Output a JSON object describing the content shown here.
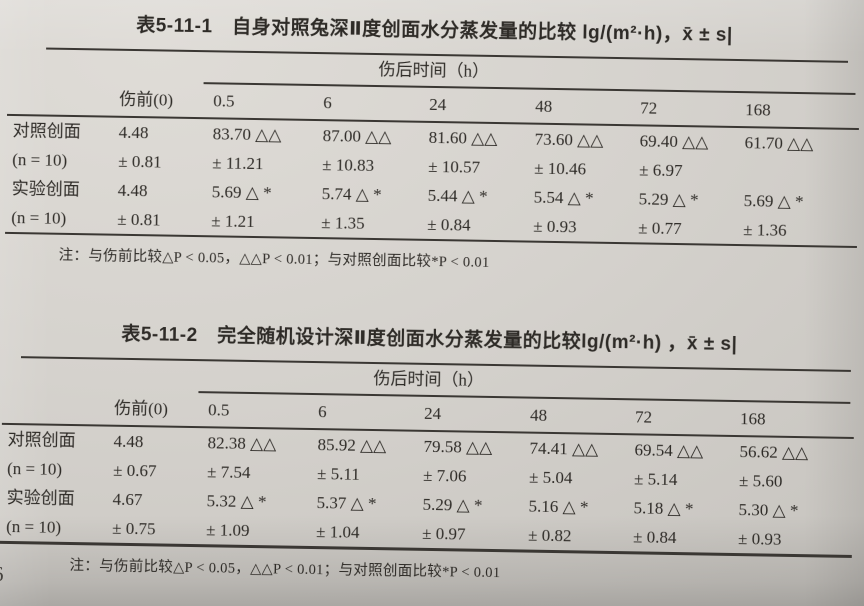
{
  "page_number": "6",
  "table1": {
    "title": "表5-11-1　自身对照兔深Ⅱ度创面水分蒸发量的比较 lg/(m²·h)，x̄ ± s|",
    "spanner": "伤后时间（h）",
    "columns": [
      "",
      "伤前(0)",
      "0.5",
      "6",
      "24",
      "48",
      "72",
      "168"
    ],
    "rows": [
      {
        "cells": [
          "对照创面",
          "4.48",
          "83.70 △△",
          "87.00 △△",
          "81.60 △△",
          "73.60 △△",
          "69.40 △△",
          "61.70 △△"
        ]
      },
      {
        "cells": [
          "(n = 10)",
          "± 0.81",
          "± 11.21",
          "± 10.83",
          "± 10.57",
          "± 10.46",
          "± 6.97",
          ""
        ]
      },
      {
        "cells": [
          "实验创面",
          "4.48",
          "5.69 △ *",
          "5.74 △ *",
          "5.44 △ *",
          "5.54 △ *",
          "5.29 △ *",
          "5.69 △ *"
        ]
      },
      {
        "cells": [
          "(n = 10)",
          "± 0.81",
          "± 1.21",
          "± 1.35",
          "± 0.84",
          "± 0.93",
          "± 0.77",
          "± 1.36"
        ]
      }
    ],
    "note": "注：与伤前比较△P < 0.05，△△P < 0.01；与对照创面比较*P < 0.01"
  },
  "table2": {
    "title": "表5-11-2　完全随机设计深Ⅱ度创面水分蒸发量的比较lg/(m²·h) ，x̄ ± s|",
    "spanner": "伤后时间（h）",
    "columns": [
      "",
      "伤前(0)",
      "0.5",
      "6",
      "24",
      "48",
      "72",
      "168"
    ],
    "rows": [
      {
        "cells": [
          "对照创面",
          "4.48",
          "82.38 △△",
          "85.92 △△",
          "79.58 △△",
          "74.41 △△",
          "69.54 △△",
          "56.62 △△"
        ]
      },
      {
        "cells": [
          "(n = 10)",
          "± 0.67",
          "± 7.54",
          "± 5.11",
          "± 7.06",
          "± 5.04",
          "± 5.14",
          "± 5.60"
        ]
      },
      {
        "cells": [
          "实验创面",
          "4.67",
          "5.32 △ *",
          "5.37 △ *",
          "5.29 △ *",
          "5.16 △ *",
          "5.18 △ *",
          "5.30 △ *"
        ]
      },
      {
        "cells": [
          "(n = 10)",
          "± 0.75",
          "± 1.09",
          "± 1.04",
          "± 0.97",
          "± 0.82",
          "± 0.84",
          "± 0.93"
        ]
      }
    ],
    "note": "注：与伤前比较△P < 0.05，△△P < 0.01；与对照创面比较*P < 0.01"
  }
}
